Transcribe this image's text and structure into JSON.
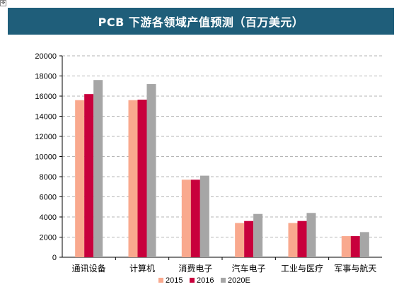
{
  "chart_data": {
    "type": "bar",
    "title": "PCB 下游各领域产值预测（百万美元）",
    "categories": [
      "通讯设备",
      "计算机",
      "消费电子",
      "汽车电子",
      "工业与医疗",
      "军事与航天"
    ],
    "series": [
      {
        "name": "2015",
        "color": "#f9a98e",
        "values": [
          15600,
          15600,
          7700,
          3400,
          3400,
          2100
        ]
      },
      {
        "name": "2016",
        "color": "#c8003c",
        "values": [
          16200,
          15650,
          7700,
          3600,
          3600,
          2100
        ]
      },
      {
        "name": "2020E",
        "color": "#a6a6a6",
        "values": [
          17600,
          17200,
          8100,
          4300,
          4400,
          2500
        ]
      }
    ],
    "yticks": [
      "0",
      "2000",
      "4000",
      "6000",
      "8000",
      "10000",
      "12000",
      "14000",
      "16000",
      "18000",
      "20000"
    ],
    "ylim": [
      0,
      20000
    ],
    "grid": true,
    "legend_position": "bottom"
  }
}
